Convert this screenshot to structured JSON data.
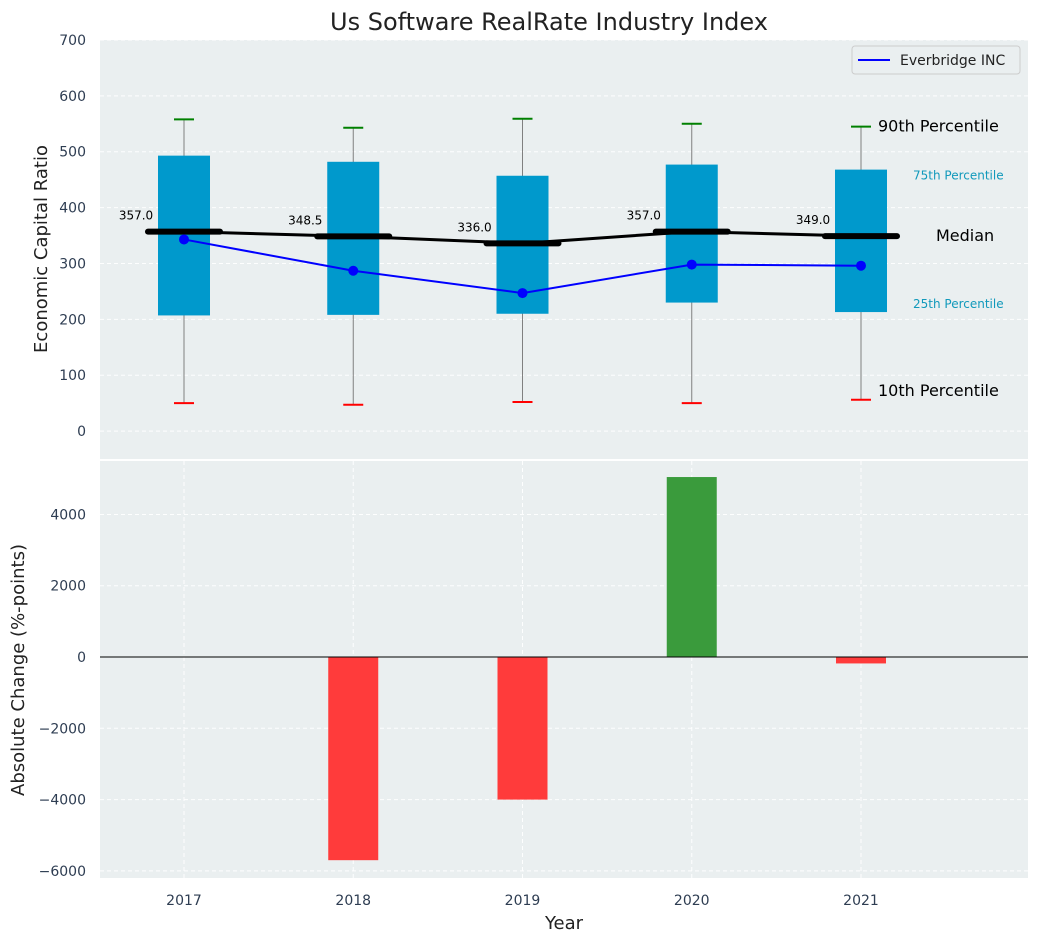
{
  "chart_data": [
    {
      "type": "box",
      "title": "Us Software RealRate Industry Index",
      "ylabel": "Economic Capital Ratio",
      "xlabel": "",
      "ylim": [
        -50,
        700
      ],
      "yticks": [
        0,
        100,
        200,
        300,
        400,
        500,
        600,
        700
      ],
      "grid": true,
      "categories": [
        "2017",
        "2018",
        "2019",
        "2020",
        "2021"
      ],
      "p10": [
        50,
        47,
        52,
        50,
        56
      ],
      "p25": [
        207,
        208,
        210,
        230,
        213
      ],
      "median": [
        357.0,
        348.5,
        336.0,
        357.0,
        349.0
      ],
      "median_labels": [
        "357.0",
        "348.5",
        "336.0",
        "357.0",
        "349.0"
      ],
      "p75": [
        493,
        482,
        457,
        477,
        468
      ],
      "p90": [
        558,
        543,
        559,
        550,
        545
      ],
      "series": [
        {
          "name": "Everbridge INC",
          "values": [
            343,
            287,
            247,
            298,
            296
          ],
          "color": "#0000ff"
        }
      ],
      "legend_position": "top-right",
      "annotations": {
        "p90": "90th Percentile",
        "p75": "75th Percentile",
        "median": "Median",
        "p25": "25th Percentile",
        "p10": "10th Percentile"
      }
    },
    {
      "type": "bar",
      "title": "",
      "xlabel": "Year",
      "ylabel": "Absolute Change (%-points)",
      "ylim": [
        -6200,
        5500
      ],
      "yticks": [
        -6000,
        -4000,
        -2000,
        0,
        2000,
        4000
      ],
      "ytick_labels": [
        "−6000",
        "−4000",
        "−2000",
        "0",
        "2000",
        "4000"
      ],
      "grid": true,
      "categories": [
        "2017",
        "2018",
        "2019",
        "2020",
        "2021"
      ],
      "values": [
        0,
        -5700,
        -4000,
        5050,
        -180
      ]
    }
  ],
  "colors": {
    "background": "#eaeff0",
    "box": "#0099cc",
    "median": "#000000",
    "p90_cap": "#008000",
    "p10_cap": "#ff0000",
    "whisker": "#808080",
    "series": "#0000ff",
    "positive_bar": "#3a9b3c",
    "negative_bar": "#ff3b3b",
    "annot_small": "#1199bb"
  }
}
